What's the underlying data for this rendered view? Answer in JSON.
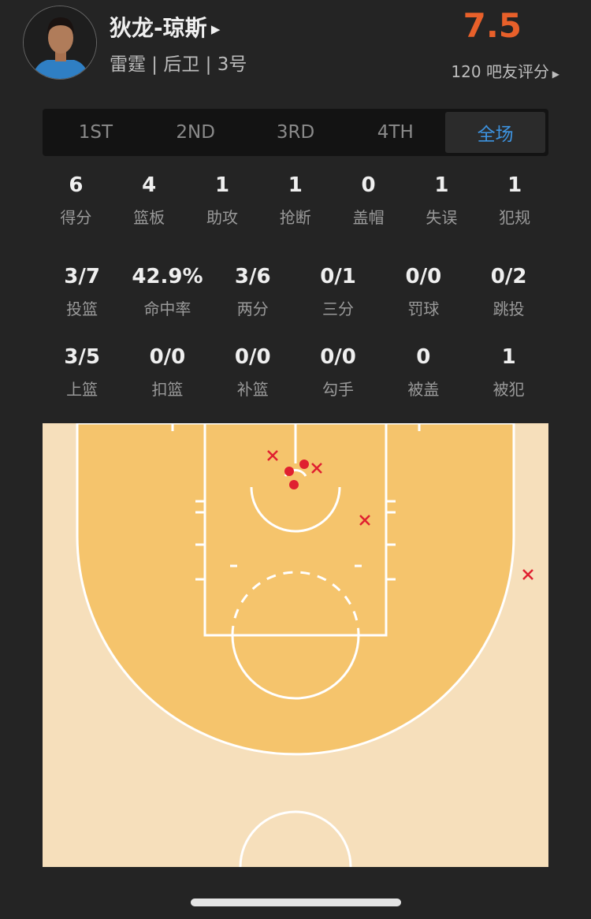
{
  "player": {
    "name": "狄龙-琼斯",
    "info": "雷霆 | 后卫 | 3号",
    "rating": "7.5",
    "votes": "120 吧友评分"
  },
  "tabs": [
    {
      "label": "1ST"
    },
    {
      "label": "2ND"
    },
    {
      "label": "3RD"
    },
    {
      "label": "4TH"
    },
    {
      "label": "全场",
      "active": true
    }
  ],
  "stats_main": [
    {
      "v": "6",
      "l": "得分"
    },
    {
      "v": "4",
      "l": "篮板"
    },
    {
      "v": "1",
      "l": "助攻"
    },
    {
      "v": "1",
      "l": "抢断"
    },
    {
      "v": "0",
      "l": "盖帽"
    },
    {
      "v": "1",
      "l": "失误"
    },
    {
      "v": "1",
      "l": "犯规"
    }
  ],
  "stats_shoot": [
    {
      "v": "3/7",
      "l": "投篮"
    },
    {
      "v": "42.9%",
      "l": "命中率"
    },
    {
      "v": "3/6",
      "l": "两分"
    },
    {
      "v": "0/1",
      "l": "三分"
    },
    {
      "v": "0/0",
      "l": "罚球"
    },
    {
      "v": "0/2",
      "l": "跳投"
    }
  ],
  "stats_type": [
    {
      "v": "3/5",
      "l": "上篮"
    },
    {
      "v": "0/0",
      "l": "扣篮"
    },
    {
      "v": "0/0",
      "l": "补篮"
    },
    {
      "v": "0/0",
      "l": "勾手"
    },
    {
      "v": "0",
      "l": "被盖"
    },
    {
      "v": "1",
      "l": "被犯"
    }
  ],
  "shot_chart": {
    "made": 3,
    "missed": 4,
    "made_color": "#e02030",
    "missed_color": "#e02030",
    "court_outer": "#f6dfbb",
    "court_inner": "#f5c46c"
  },
  "colors": {
    "rating": "#e8602a",
    "active_tab": "#3d93e0"
  }
}
